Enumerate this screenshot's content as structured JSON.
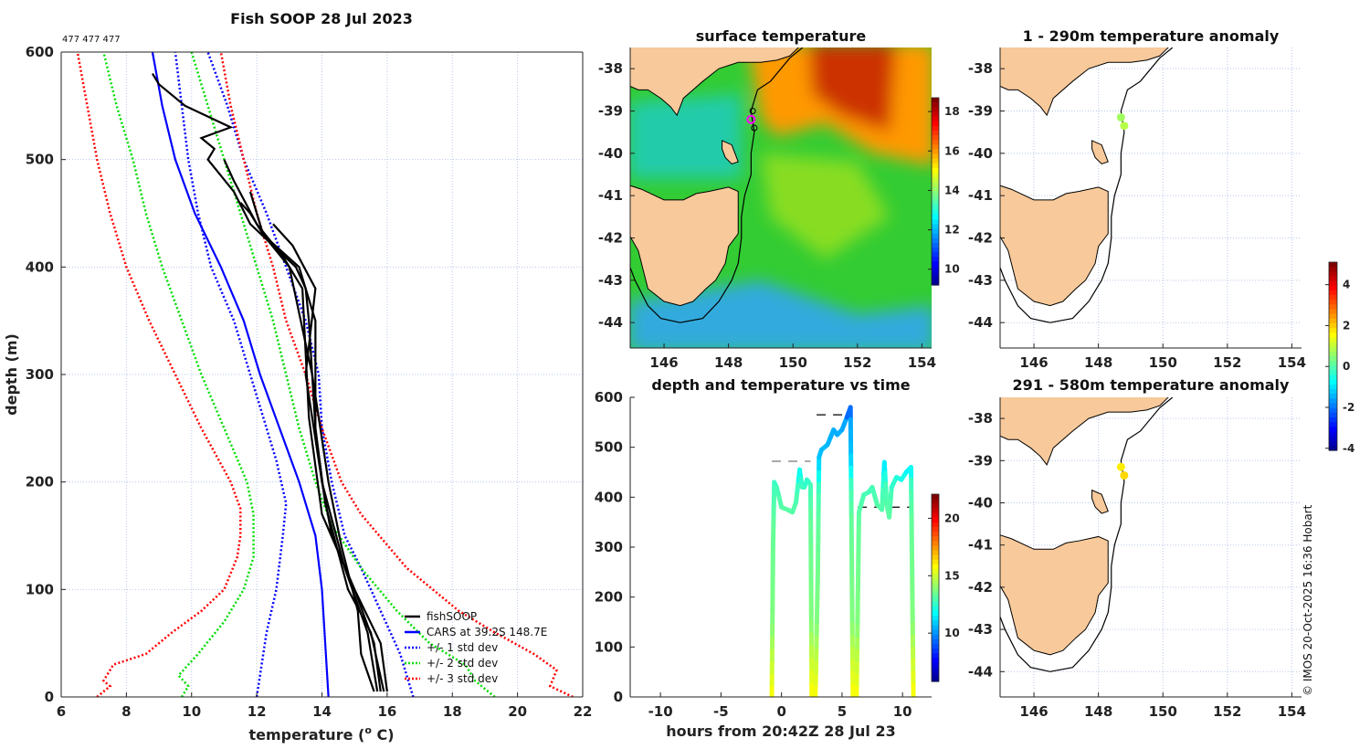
{
  "title": "Fish SOOP 28 Jul 2023",
  "counts_label": "477 477 477",
  "copyright": "© IMOS 20-Oct-2025 16:36 Hobart",
  "colors": {
    "fishsoop": "#000000",
    "cars": "#0000ff",
    "std1": "#0000ff",
    "std2": "#00dd00",
    "std3": "#ff0000",
    "land": "#f8c99a",
    "marker": "#ff00ff"
  },
  "chart_data": [
    {
      "id": "profile",
      "type": "line",
      "title": "Fish SOOP 28 Jul 2023",
      "xlabel": "temperature (o C)",
      "xlabel_main": "temperature (",
      "xlabel_sup": "o",
      "xlabel_end": " C)",
      "ylabel": "depth (m)",
      "xlim": [
        6,
        22
      ],
      "ylim": [
        600,
        0
      ],
      "xticks": [
        6,
        8,
        10,
        12,
        14,
        16,
        18,
        20,
        22
      ],
      "yticks": [
        0,
        100,
        200,
        300,
        400,
        500,
        600
      ],
      "grid": true,
      "legend_position": "bottom-right",
      "legend": [
        "fishSOOP",
        "CARS at 39.2S 148.7E",
        "+/- 1 std dev",
        "+/- 2 std dev",
        "+/- 3 std dev"
      ],
      "series": [
        {
          "name": "+/- 3 std dev (low)",
          "style": "dotted",
          "color": "#ff0000",
          "points": [
            [
              7.1,
              0
            ],
            [
              7.5,
              10
            ],
            [
              7.3,
              15
            ],
            [
              7.6,
              30
            ],
            [
              8.6,
              40
            ],
            [
              9.4,
              60
            ],
            [
              10.3,
              80
            ],
            [
              11.0,
              100
            ],
            [
              11.4,
              130
            ],
            [
              11.5,
              150
            ],
            [
              11.5,
              175
            ],
            [
              11.2,
              200
            ],
            [
              10.3,
              250
            ],
            [
              9.5,
              300
            ],
            [
              8.7,
              350
            ],
            [
              8.0,
              400
            ],
            [
              7.5,
              450
            ],
            [
              7.1,
              500
            ],
            [
              6.8,
              550
            ],
            [
              6.5,
              600
            ]
          ]
        },
        {
          "name": "+/- 2 std dev (low)",
          "style": "dotted",
          "color": "#00dd00",
          "points": [
            [
              9.7,
              0
            ],
            [
              9.9,
              10
            ],
            [
              9.6,
              20
            ],
            [
              10.2,
              40
            ],
            [
              11.0,
              70
            ],
            [
              11.6,
              100
            ],
            [
              11.9,
              130
            ],
            [
              11.9,
              170
            ],
            [
              11.7,
              200
            ],
            [
              11.0,
              250
            ],
            [
              10.3,
              300
            ],
            [
              9.7,
              350
            ],
            [
              9.1,
              400
            ],
            [
              8.6,
              450
            ],
            [
              8.2,
              500
            ],
            [
              7.7,
              550
            ],
            [
              7.3,
              600
            ]
          ]
        },
        {
          "name": "+/- 1 std dev (low)",
          "style": "dotted",
          "color": "#0000ff",
          "points": [
            [
              12.0,
              0
            ],
            [
              12.1,
              20
            ],
            [
              12.3,
              60
            ],
            [
              12.6,
              100
            ],
            [
              12.8,
              150
            ],
            [
              12.9,
              180
            ],
            [
              12.6,
              220
            ],
            [
              11.8,
              300
            ],
            [
              11.3,
              350
            ],
            [
              10.6,
              400
            ],
            [
              10.2,
              450
            ],
            [
              9.9,
              500
            ],
            [
              9.7,
              550
            ],
            [
              9.5,
              600
            ]
          ]
        },
        {
          "name": "CARS at 39.2S 148.7E",
          "style": "solid",
          "color": "#0000ff",
          "points": [
            [
              14.2,
              0
            ],
            [
              14.1,
              50
            ],
            [
              14.0,
              100
            ],
            [
              13.8,
              150
            ],
            [
              13.3,
              200
            ],
            [
              12.7,
              250
            ],
            [
              12.1,
              300
            ],
            [
              11.6,
              350
            ],
            [
              10.9,
              400
            ],
            [
              10.1,
              450
            ],
            [
              9.5,
              500
            ],
            [
              9.1,
              550
            ],
            [
              8.8,
              600
            ]
          ]
        },
        {
          "name": "+/- 1 std dev (high)",
          "style": "dotted",
          "color": "#0000ff",
          "points": [
            [
              16.8,
              0
            ],
            [
              16.4,
              40
            ],
            [
              15.8,
              80
            ],
            [
              15.2,
              120
            ],
            [
              14.7,
              150
            ],
            [
              14.3,
              200
            ],
            [
              14.0,
              250
            ],
            [
              13.9,
              300
            ],
            [
              13.5,
              350
            ],
            [
              12.9,
              400
            ],
            [
              12.3,
              450
            ],
            [
              11.6,
              500
            ],
            [
              11.1,
              550
            ],
            [
              10.5,
              600
            ]
          ]
        },
        {
          "name": "+/- 2 std dev (high)",
          "style": "dotted",
          "color": "#00dd00",
          "points": [
            [
              19.3,
              0
            ],
            [
              18.7,
              15
            ],
            [
              18.4,
              30
            ],
            [
              17.3,
              50
            ],
            [
              16.3,
              80
            ],
            [
              15.2,
              120
            ],
            [
              14.3,
              160
            ],
            [
              13.8,
              200
            ],
            [
              13.3,
              250
            ],
            [
              12.9,
              300
            ],
            [
              12.5,
              350
            ],
            [
              12.0,
              400
            ],
            [
              11.5,
              450
            ],
            [
              11.0,
              500
            ],
            [
              10.5,
              550
            ],
            [
              10.0,
              600
            ]
          ]
        },
        {
          "name": "+/- 3 std dev (high)",
          "style": "dotted",
          "color": "#ff0000",
          "points": [
            [
              21.7,
              0
            ],
            [
              21.0,
              10
            ],
            [
              21.2,
              25
            ],
            [
              20.5,
              40
            ],
            [
              19.3,
              60
            ],
            [
              18.2,
              80
            ],
            [
              16.6,
              120
            ],
            [
              15.2,
              170
            ],
            [
              14.6,
              200
            ],
            [
              14.0,
              250
            ],
            [
              13.5,
              300
            ],
            [
              12.9,
              350
            ],
            [
              12.5,
              400
            ],
            [
              12.0,
              450
            ],
            [
              11.6,
              500
            ],
            [
              11.2,
              550
            ],
            [
              10.9,
              600
            ]
          ]
        },
        {
          "name": "fishSOOP",
          "style": "solid",
          "color": "#000000",
          "points": [
            [
              15.8,
              5
            ],
            [
              15.6,
              50
            ],
            [
              15.0,
              100
            ],
            [
              14.3,
              150
            ],
            [
              14.0,
              200
            ],
            [
              13.8,
              250
            ],
            [
              13.7,
              300
            ],
            [
              13.6,
              350
            ],
            [
              13.5,
              380
            ],
            [
              13.2,
              400
            ],
            [
              12.5,
              420
            ],
            [
              11.8,
              440
            ],
            [
              11.3,
              470
            ],
            [
              10.5,
              500
            ],
            [
              10.7,
              510
            ],
            [
              10.3,
              520
            ],
            [
              11.2,
              530
            ],
            [
              9.8,
              550
            ],
            [
              9.0,
              570
            ],
            [
              8.8,
              580
            ]
          ]
        },
        {
          "name": "fishSOOP",
          "style": "solid",
          "color": "#000000",
          "points": [
            [
              15.9,
              5
            ],
            [
              15.5,
              60
            ],
            [
              14.8,
              100
            ],
            [
              14.1,
              180
            ],
            [
              13.8,
              250
            ],
            [
              13.8,
              350
            ],
            [
              13.3,
              400
            ],
            [
              12.2,
              430
            ],
            [
              11.8,
              450
            ],
            [
              11.5,
              460
            ]
          ]
        },
        {
          "name": "fishSOOP",
          "style": "solid",
          "color": "#000000",
          "points": [
            [
              16.0,
              5
            ],
            [
              15.8,
              50
            ],
            [
              15.0,
              100
            ],
            [
              14.0,
              170
            ],
            [
              13.6,
              260
            ],
            [
              13.4,
              380
            ],
            [
              12.8,
              410
            ],
            [
              12.0,
              440
            ],
            [
              11.3,
              480
            ],
            [
              11.0,
              500
            ]
          ]
        },
        {
          "name": "fishSOOP",
          "style": "solid",
          "color": "#000000",
          "points": [
            [
              15.6,
              5
            ],
            [
              15.2,
              40
            ],
            [
              15.1,
              80
            ],
            [
              14.6,
              140
            ],
            [
              14.2,
              200
            ],
            [
              13.7,
              300
            ],
            [
              13.0,
              400
            ],
            [
              12.2,
              430
            ],
            [
              11.8,
              470
            ]
          ]
        },
        {
          "name": "fishSOOP",
          "style": "solid",
          "color": "#000000",
          "points": [
            [
              15.7,
              5
            ],
            [
              15.4,
              60
            ],
            [
              14.7,
              120
            ],
            [
              14.0,
              200
            ],
            [
              13.5,
              300
            ],
            [
              13.8,
              380
            ],
            [
              13.1,
              420
            ],
            [
              12.5,
              440
            ]
          ]
        }
      ]
    },
    {
      "id": "sst_map",
      "type": "heatmap",
      "title": "surface temperature",
      "xlim": [
        144.95,
        154.3
      ],
      "ylim": [
        -44.6,
        -37.5
      ],
      "xticks": [
        146,
        148,
        150,
        152,
        154
      ],
      "yticks": [
        -38,
        -39,
        -40,
        -41,
        -42,
        -43,
        -44
      ],
      "colorbar": {
        "range": [
          9.2,
          18.7
        ],
        "ticks": [
          10,
          12,
          14,
          16,
          18
        ]
      },
      "ship_position": [
        148.7,
        -39.2
      ]
    },
    {
      "id": "time_plot",
      "type": "line",
      "title": "depth and temperature vs time",
      "xlabel": "hours from 20:42Z 28 Jul 23",
      "xlim": [
        -12.5,
        12.4
      ],
      "ylim": [
        600,
        0
      ],
      "xticks": [
        -10,
        -5,
        0,
        5,
        10
      ],
      "yticks": [
        0,
        100,
        200,
        300,
        400,
        500,
        600
      ],
      "colorbar": {
        "range": [
          5.8,
          22.1
        ],
        "ticks": [
          10,
          15,
          20
        ]
      },
      "track": [
        [
          -0.8,
          0
        ],
        [
          -0.7,
          300
        ],
        [
          -0.6,
          430
        ],
        [
          -0.4,
          420
        ],
        [
          0,
          380
        ],
        [
          0.5,
          375
        ],
        [
          0.9,
          370
        ],
        [
          1.2,
          390
        ],
        [
          1.5,
          455
        ],
        [
          1.7,
          420
        ],
        [
          1.9,
          420
        ],
        [
          2.1,
          435
        ],
        [
          2.4,
          425
        ],
        [
          2.5,
          0
        ],
        [
          2.8,
          0
        ],
        [
          3.0,
          250
        ],
        [
          3.1,
          480
        ],
        [
          3.3,
          495
        ],
        [
          3.8,
          505
        ],
        [
          4.3,
          535
        ],
        [
          4.6,
          525
        ],
        [
          5.0,
          535
        ],
        [
          5.4,
          560
        ],
        [
          5.7,
          580
        ],
        [
          5.9,
          0
        ],
        [
          6.2,
          0
        ],
        [
          6.4,
          370
        ],
        [
          6.8,
          405
        ],
        [
          7.2,
          410
        ],
        [
          7.5,
          420
        ],
        [
          7.9,
          385
        ],
        [
          8.3,
          375
        ],
        [
          8.5,
          470
        ],
        [
          8.7,
          385
        ],
        [
          8.9,
          360
        ],
        [
          9.1,
          420
        ],
        [
          9.5,
          440
        ],
        [
          9.9,
          435
        ],
        [
          10.3,
          450
        ],
        [
          10.7,
          460
        ],
        [
          10.9,
          0
        ]
      ],
      "bottom_lines": [
        {
          "x": [
            -0.8,
            2.4
          ],
          "depth": 472,
          "color": "#777777"
        },
        {
          "x": [
            2.9,
            5.8
          ],
          "depth": 565,
          "color": "#000000"
        },
        {
          "x": [
            6.3,
            10.7
          ],
          "depth": 380,
          "color": "#000000"
        }
      ]
    },
    {
      "id": "anomaly_shallow",
      "type": "scatter",
      "title": "1 - 290m temperature anomaly",
      "xlim": [
        144.95,
        154.3
      ],
      "ylim": [
        -44.6,
        -37.5
      ],
      "xticks": [
        146,
        148,
        150,
        152,
        154
      ],
      "yticks": [
        -38,
        -39,
        -40,
        -41,
        -42,
        -43,
        -44
      ],
      "points": [
        [
          148.7,
          -39.15,
          0.8
        ],
        [
          148.8,
          -39.35,
          1.0
        ]
      ]
    },
    {
      "id": "anomaly_deep",
      "type": "scatter",
      "title": "291 - 580m temperature anomaly",
      "xlim": [
        144.95,
        154.3
      ],
      "ylim": [
        -44.6,
        -37.5
      ],
      "xticks": [
        146,
        148,
        150,
        152,
        154
      ],
      "yticks": [
        -38,
        -39,
        -40,
        -41,
        -42,
        -43,
        -44
      ],
      "points": [
        [
          148.7,
          -39.15,
          1.8
        ],
        [
          148.8,
          -39.35,
          2.0
        ]
      ],
      "colorbar": {
        "range": [
          -4.1,
          5.1
        ],
        "ticks": [
          4,
          2,
          0,
          -2,
          -4
        ]
      }
    }
  ]
}
